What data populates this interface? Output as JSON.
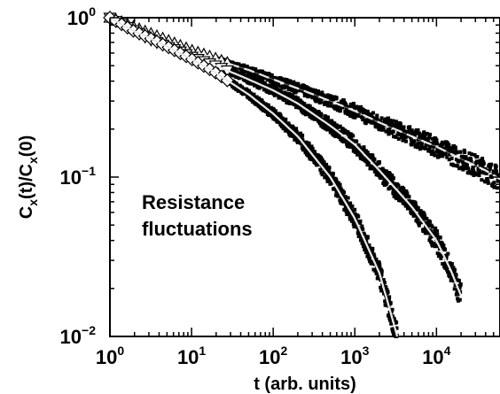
{
  "chart_data": {
    "type": "scatter",
    "title": "",
    "xlabel": "t  (arb. units)",
    "ylabel": "C_x(t)/C_x(0)",
    "ylabel_parts": {
      "base1": "C",
      "sub1": "x",
      "mid": "(t)/C",
      "sub2": "x",
      "tail": "(0)"
    },
    "xscale": "log",
    "yscale": "log",
    "xlim": [
      1,
      60000
    ],
    "ylim": [
      0.01,
      1
    ],
    "grid": false,
    "x_ticks": [
      {
        "value": 1,
        "base": "10",
        "exp": "0"
      },
      {
        "value": 10,
        "base": "10",
        "exp": "1"
      },
      {
        "value": 100,
        "base": "10",
        "exp": "2"
      },
      {
        "value": 1000,
        "base": "10",
        "exp": "3"
      },
      {
        "value": 10000,
        "base": "10",
        "exp": "4"
      }
    ],
    "y_ticks": [
      {
        "value": 1,
        "base": "10",
        "exp": "0"
      },
      {
        "value": 0.1,
        "base": "10",
        "exp": "−1"
      },
      {
        "value": 0.01,
        "base": "10",
        "exp": "−2"
      }
    ],
    "annotation_lines": [
      "Resistance",
      "fluctuations"
    ],
    "series": [
      {
        "marker": "triangle-up",
        "points": [
          [
            1,
            1.0
          ],
          [
            5,
            0.72
          ],
          [
            7,
            0.67
          ],
          [
            10,
            0.62
          ],
          [
            15,
            0.58
          ],
          [
            20,
            0.55
          ],
          [
            30,
            0.51
          ],
          [
            50,
            0.47
          ],
          [
            100,
            0.41
          ],
          [
            200,
            0.36
          ],
          [
            500,
            0.3
          ],
          [
            1000,
            0.26
          ],
          [
            2000,
            0.22
          ],
          [
            5000,
            0.18
          ],
          [
            10000,
            0.155
          ],
          [
            20000,
            0.13
          ],
          [
            40000,
            0.11
          ],
          [
            60000,
            0.097
          ]
        ],
        "fit": "dashed",
        "scatter_band": true
      },
      {
        "marker": "triangle-down",
        "points": [
          [
            1,
            1.0
          ],
          [
            3,
            0.74
          ],
          [
            5,
            0.66
          ],
          [
            7,
            0.62
          ],
          [
            10,
            0.57
          ],
          [
            20,
            0.5
          ],
          [
            50,
            0.41
          ],
          [
            100,
            0.35
          ],
          [
            200,
            0.29
          ],
          [
            500,
            0.21
          ],
          [
            1000,
            0.16
          ],
          [
            2000,
            0.11
          ],
          [
            5000,
            0.065
          ],
          [
            10000,
            0.04
          ],
          [
            15000,
            0.026
          ],
          [
            20000,
            0.018
          ]
        ],
        "fit": "solid",
        "scatter_band": true
      },
      {
        "marker": "diamond",
        "points": [
          [
            1,
            1.0
          ],
          [
            2,
            0.82
          ],
          [
            3,
            0.75
          ],
          [
            5,
            0.66
          ],
          [
            10,
            0.55
          ],
          [
            20,
            0.45
          ],
          [
            50,
            0.33
          ],
          [
            100,
            0.25
          ],
          [
            200,
            0.18
          ],
          [
            500,
            0.1
          ],
          [
            1000,
            0.055
          ],
          [
            2000,
            0.025
          ],
          [
            3000,
            0.012
          ],
          [
            3300,
            0.01
          ]
        ],
        "fit": "solid",
        "scatter_band": true
      }
    ]
  }
}
